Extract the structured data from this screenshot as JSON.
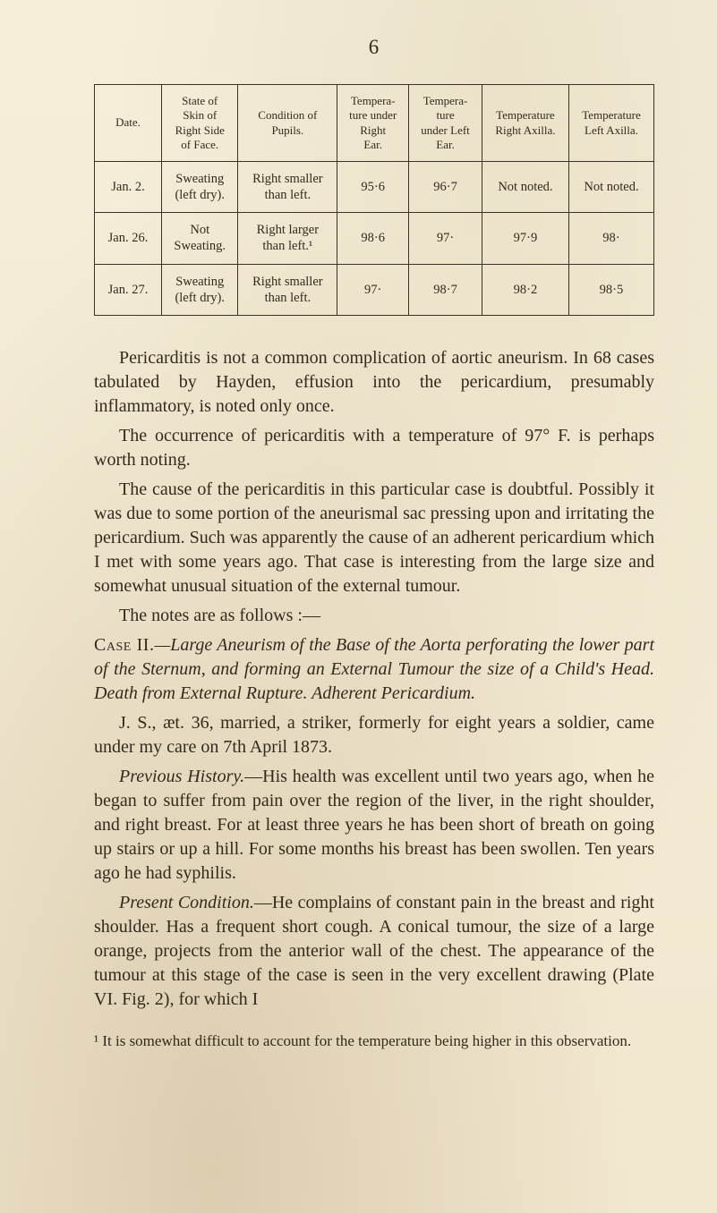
{
  "page_number": "6",
  "table": {
    "headers": [
      "Date.",
      "State of\nSkin of\nRight Side\nof Face.",
      "Condition of\nPupils.",
      "Tempera-\nture under\nRight\nEar.",
      "Tempera-\nture\nunder Left\nEar.",
      "Temperature\nRight Axilla.",
      "Temperature\nLeft Axilla."
    ],
    "rows": [
      {
        "date": "Jan.  2.",
        "skin": "Sweating\n(left dry).",
        "pupils": "Right smaller\nthan left.",
        "r_ear": "95·6",
        "l_ear": "96·7",
        "r_ax": "Not noted.",
        "l_ax": "Not noted."
      },
      {
        "date": "Jan. 26.",
        "skin": "Not\nSweating.",
        "pupils": "Right larger\nthan left.¹",
        "r_ear": "98·6",
        "l_ear": "97·",
        "r_ax": "97·9",
        "l_ax": "98·"
      },
      {
        "date": "Jan. 27.",
        "skin": "Sweating\n(left dry).",
        "pupils": "Right smaller\nthan left.",
        "r_ear": "97·",
        "l_ear": "98·7",
        "r_ax": "98·2",
        "l_ax": "98·5"
      }
    ]
  },
  "para1": "Pericarditis is not a common complication of aortic aneurism. In 68 cases tabulated by Hayden, effusion into the pericardium, presumably inflammatory, is noted only once.",
  "para2": "The occurrence of pericarditis with a temperature of 97° F. is perhaps worth noting.",
  "para3": "The cause of the pericarditis in this particular case is doubtful. Possibly it was due to some portion of the aneurismal sac pressing upon and irritating the pericardium. Such was apparently the cause of an adherent pericardium which I met with some years ago. That case is interesting from the large size and somewhat unusual situation of the external tumour.",
  "para4": "The notes are as follows :—",
  "case2_label": "Case II.",
  "case2_title": "—Large Aneurism of the Base of the Aorta perforating the lower part of the Sternum, and forming an External Tumour the size of a Child's Head. Death from External Rupture. Adherent Pericardium.",
  "para5": "J. S., æt. 36, married, a striker, formerly for eight years a soldier, came under my care on 7th April 1873.",
  "hist_label": "Previous History.",
  "para6_rest": "—His health was excellent until two years ago, when he began to suffer from pain over the region of the liver, in the right shoulder, and right breast. For at least three years he has been short of breath on going up stairs or up a hill. For some months his breast has been swollen. Ten years ago he had syphilis.",
  "present_label": "Present Condition.",
  "para7_rest": "—He complains of constant pain in the breast and right shoulder. Has a frequent short cough. A conical tumour, the size of a large orange, projects from the anterior wall of the chest. The appearance of the tumour at this stage of the case is seen in the very excellent drawing (Plate VI. Fig. 2), for which I",
  "footnote": "¹ It is somewhat difficult to account for the temperature being higher in this observation."
}
